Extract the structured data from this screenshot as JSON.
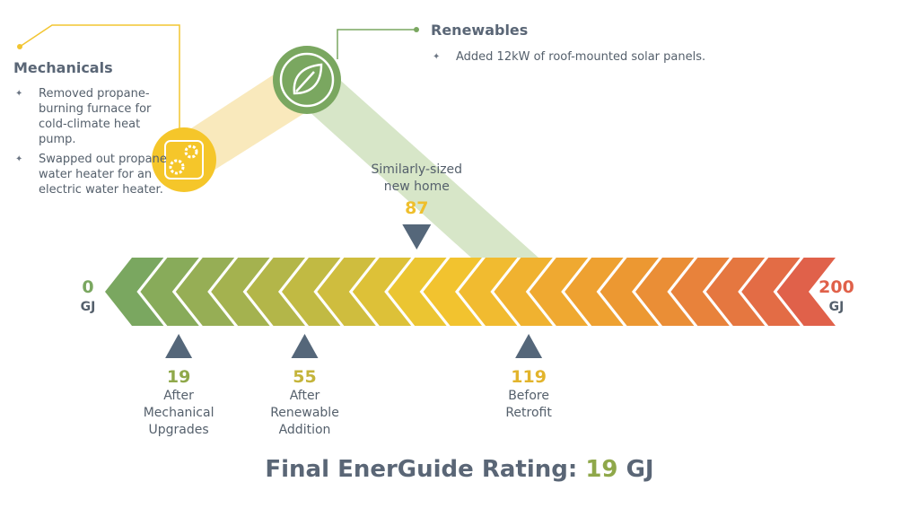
{
  "mechanicals": {
    "title": "Mechanicals",
    "items": [
      "Removed propane-burning furnace for cold-climate heat pump.",
      "Swapped out propane water heater for an electric water heater."
    ]
  },
  "renewables": {
    "title": "Renewables",
    "items": [
      "Added 12kW of roof-mounted solar panels."
    ]
  },
  "scale": {
    "min": {
      "value": 0,
      "unit": "GJ",
      "color": "#7aa760"
    },
    "max": {
      "value": 200,
      "unit": "GJ",
      "color": "#e0614a"
    },
    "markers": [
      {
        "value": 19,
        "label": [
          "After",
          "Mechanical",
          "Upgrades"
        ],
        "color": "#8fa84a"
      },
      {
        "value": 55,
        "label": [
          "After",
          "Renewable",
          "Addition"
        ],
        "color": "#c4b43a"
      },
      {
        "value": 119,
        "label": [
          "Before",
          "Retrofit"
        ],
        "color": "#e2b42c"
      }
    ],
    "reference": {
      "value": 87,
      "label": [
        "Similarly-sized",
        "new home"
      ],
      "color": "#efbf2c"
    }
  },
  "final": {
    "label": "Final EnerGuide Rating:",
    "value": 19,
    "unit": "GJ",
    "color": "#8fa84a"
  }
}
